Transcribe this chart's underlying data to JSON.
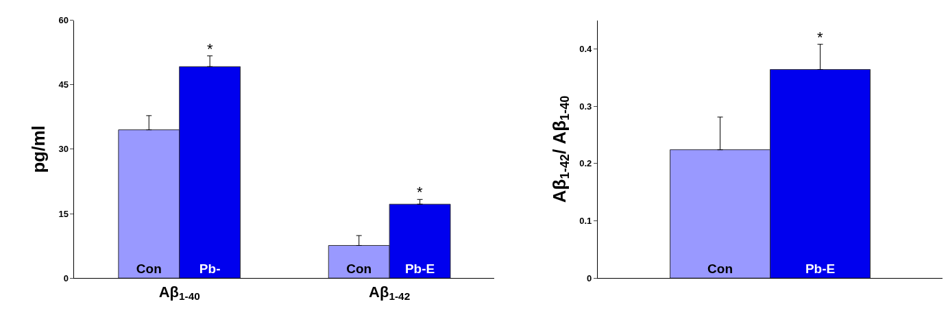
{
  "chart_data": [
    {
      "type": "bar",
      "categories": [
        "Aβ$_{1-40}$",
        "Aβ$_{1-42}$"
      ],
      "ylabel": "pg/ml",
      "ylim": [
        0,
        60
      ],
      "yticks": [
        0,
        15,
        30,
        45,
        60
      ],
      "series": [
        {
          "color": "#9999ff",
          "values": [
            34.5,
            7.6
          ],
          "errors": [
            [
              34.5,
              37.8
            ],
            [
              7.6,
              9.9
            ]
          ],
          "value_labels": [
            "Con",
            "Con"
          ]
        },
        {
          "color": "#0000ee",
          "values": [
            49.2,
            17.2
          ],
          "errors": [
            [
              49.2,
              51.7
            ],
            [
              17.2,
              18.3
            ]
          ],
          "value_labels": [
            "Pb-",
            "Pb-E"
          ]
        }
      ],
      "annotations": [
        "*",
        "*"
      ]
    },
    {
      "type": "bar",
      "categories": [
        null
      ],
      "ylabel": "Aβ$_{1-42}$/ Aβ$_{1-40}$",
      "ylim": [
        0,
        0.45
      ],
      "yticks": [
        0,
        0.1,
        0.2,
        0.3,
        0.4
      ],
      "series": [
        {
          "color": "#9999ff",
          "values": [
            0.224
          ],
          "errors": [
            [
              0.224,
              0.281
            ]
          ],
          "value_labels": [
            "Con"
          ]
        },
        {
          "color": "#0000ee",
          "values": [
            0.364
          ],
          "errors": [
            [
              0.364,
              0.408
            ]
          ],
          "value_labels": [
            "Pb-E"
          ]
        }
      ],
      "annotations": [
        "*"
      ]
    }
  ]
}
